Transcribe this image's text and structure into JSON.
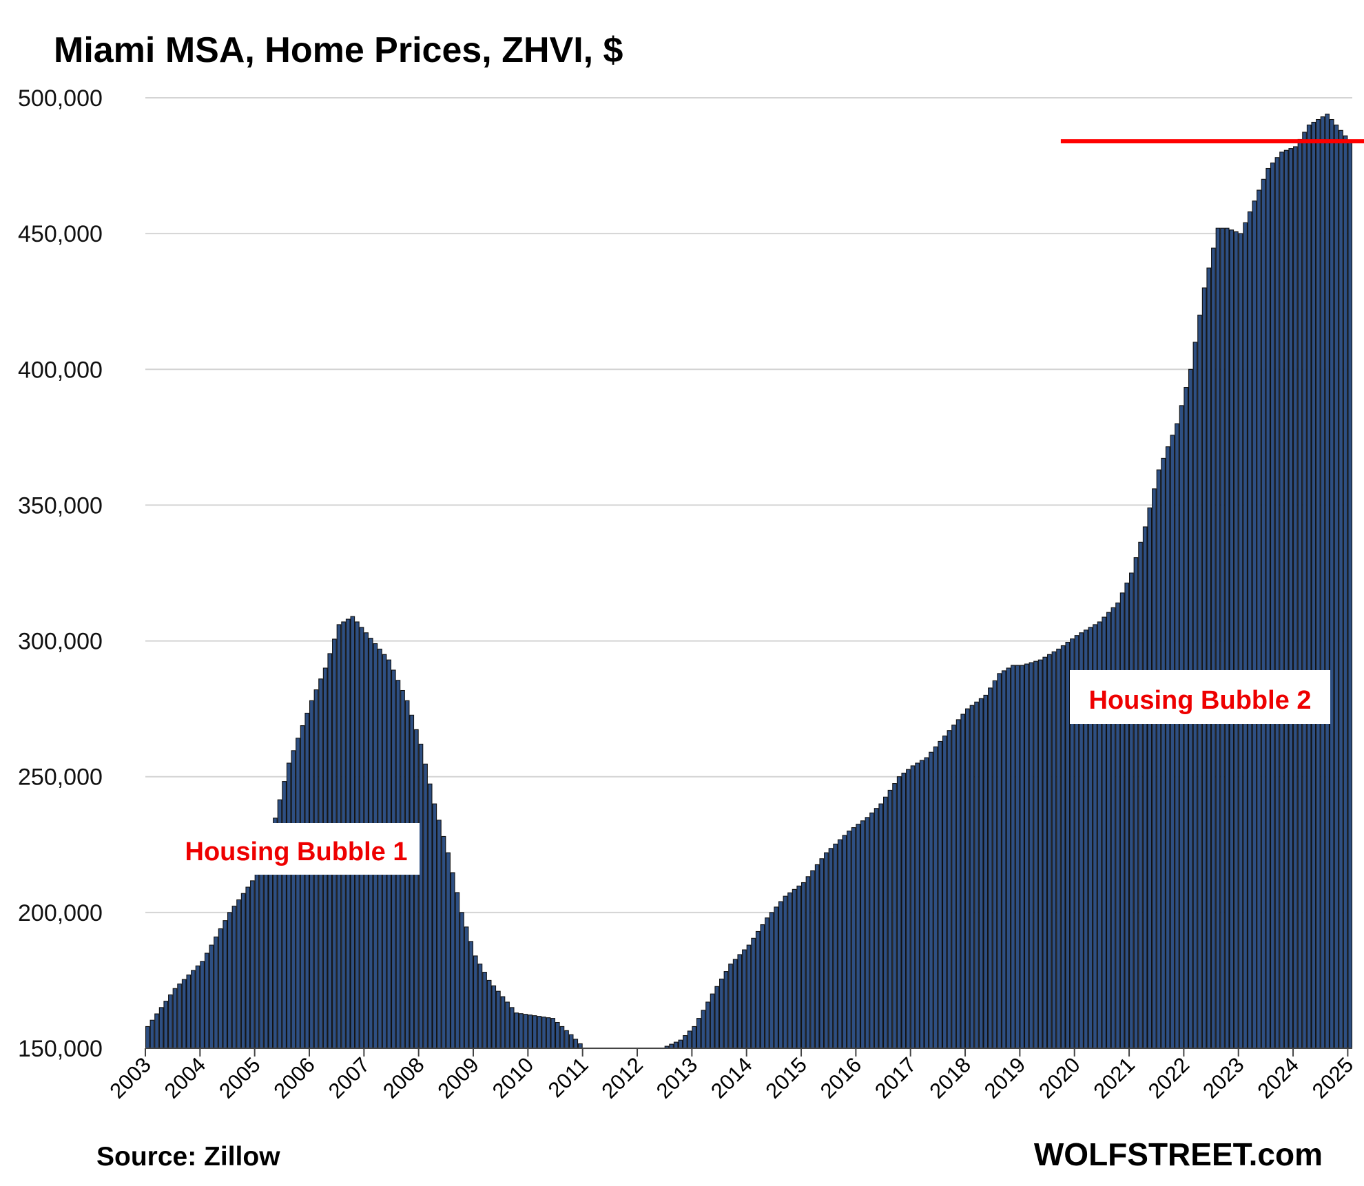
{
  "chart_data": {
    "type": "bar",
    "title": "Miami MSA, Home Prices, ZHVI, $",
    "xlabel": "",
    "ylabel": "",
    "ylim": [
      150000,
      500000
    ],
    "yticks": [
      "500,000",
      "450,000",
      "400,000",
      "350,000",
      "300,000",
      "250,000",
      "200,000",
      "150,000"
    ],
    "ytick_values": [
      500000,
      450000,
      400000,
      350000,
      300000,
      250000,
      200000,
      150000
    ],
    "xticks": [
      "2003",
      "2004",
      "2005",
      "2006",
      "2007",
      "2008",
      "2009",
      "2010",
      "2011",
      "2012",
      "2013",
      "2014",
      "2015",
      "2016",
      "2017",
      "2018",
      "2019",
      "2020",
      "2021",
      "2022",
      "2023",
      "2024",
      "2025"
    ],
    "grid": true,
    "frequency": "monthly",
    "start": "2003-01",
    "bar_color": "#2e4f82",
    "bar_edge_color": "#111111",
    "reference_line": {
      "value": 484000,
      "color": "#ff0000",
      "from": "2019-10"
    },
    "annotations": [
      {
        "text": "Housing Bubble 1",
        "color": "#ee0000"
      },
      {
        "text": "Housing Bubble 2",
        "color": "#ee0000"
      }
    ],
    "keypoints": [
      [
        "2003-01",
        158000
      ],
      [
        "2003-07",
        172000
      ],
      [
        "2004-01",
        182000
      ],
      [
        "2004-07",
        200000
      ],
      [
        "2005-01",
        214000
      ],
      [
        "2005-04",
        228000
      ],
      [
        "2005-08",
        255000
      ],
      [
        "2006-01",
        278000
      ],
      [
        "2006-04",
        290000
      ],
      [
        "2006-07",
        306000
      ],
      [
        "2006-10",
        309000
      ],
      [
        "2007-01",
        303000
      ],
      [
        "2007-06",
        293000
      ],
      [
        "2007-10",
        278000
      ],
      [
        "2008-01",
        262000
      ],
      [
        "2008-04",
        240000
      ],
      [
        "2008-07",
        222000
      ],
      [
        "2008-10",
        200000
      ],
      [
        "2009-01",
        184000
      ],
      [
        "2009-04",
        175000
      ],
      [
        "2009-07",
        169000
      ],
      [
        "2009-10",
        163000
      ],
      [
        "2010-02",
        162000
      ],
      [
        "2010-06",
        161000
      ],
      [
        "2010-10",
        155000
      ],
      [
        "2011-01",
        150000
      ],
      [
        "2012-06",
        150000
      ],
      [
        "2012-10",
        153000
      ],
      [
        "2013-01",
        158000
      ],
      [
        "2013-05",
        170000
      ],
      [
        "2013-09",
        181000
      ],
      [
        "2014-01",
        188000
      ],
      [
        "2014-05",
        198000
      ],
      [
        "2014-09",
        206000
      ],
      [
        "2015-01",
        211000
      ],
      [
        "2015-06",
        222000
      ],
      [
        "2015-11",
        230000
      ],
      [
        "2016-03",
        235000
      ],
      [
        "2016-06",
        240000
      ],
      [
        "2016-10",
        250000
      ],
      [
        "2017-01",
        254000
      ],
      [
        "2017-04",
        257000
      ],
      [
        "2017-07",
        263000
      ],
      [
        "2017-11",
        271000
      ],
      [
        "2018-01",
        275000
      ],
      [
        "2018-05",
        280000
      ],
      [
        "2018-08",
        288000
      ],
      [
        "2018-11",
        291000
      ],
      [
        "2019-01",
        291000
      ],
      [
        "2019-05",
        293000
      ],
      [
        "2019-09",
        297000
      ],
      [
        "2020-01",
        302000
      ],
      [
        "2020-06",
        307000
      ],
      [
        "2020-10",
        314000
      ],
      [
        "2021-01",
        325000
      ],
      [
        "2021-04",
        342000
      ],
      [
        "2021-07",
        363000
      ],
      [
        "2021-11",
        380000
      ],
      [
        "2022-02",
        400000
      ],
      [
        "2022-05",
        430000
      ],
      [
        "2022-08",
        452000
      ],
      [
        "2022-10",
        452000
      ],
      [
        "2023-01",
        450000
      ],
      [
        "2023-04",
        462000
      ],
      [
        "2023-07",
        474000
      ],
      [
        "2023-10",
        480000
      ],
      [
        "2024-01",
        482000
      ],
      [
        "2024-04",
        490000
      ],
      [
        "2024-08",
        494000
      ],
      [
        "2024-11",
        488000
      ],
      [
        "2025-01",
        484000
      ]
    ]
  },
  "footer": {
    "source": "Source: Zillow",
    "brand": "WOLFSTREET.com"
  }
}
